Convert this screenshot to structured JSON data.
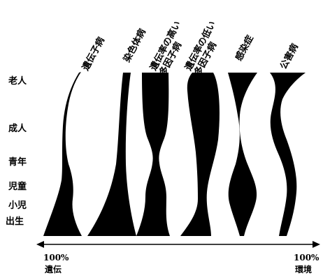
{
  "age_stages": [
    "老人",
    "成人",
    "青年",
    "児童",
    "小児",
    "出生"
  ],
  "diseases": [
    {
      "line1": "遺伝子病",
      "line2": ""
    },
    {
      "line1": "染色体病",
      "line2": ""
    },
    {
      "line1": "遺伝率の高い",
      "line2": "多因子病"
    },
    {
      "line1": "遺伝率の低い",
      "line2": "多因子病"
    },
    {
      "line1": "感染症",
      "line2": ""
    },
    {
      "line1": "公害病",
      "line2": ""
    }
  ],
  "axis": {
    "left_percent": "100%",
    "left_label": "遺伝",
    "right_percent": "100%",
    "right_label": "環境"
  },
  "colors": {
    "ink": "#000000",
    "background": "#ffffff"
  }
}
